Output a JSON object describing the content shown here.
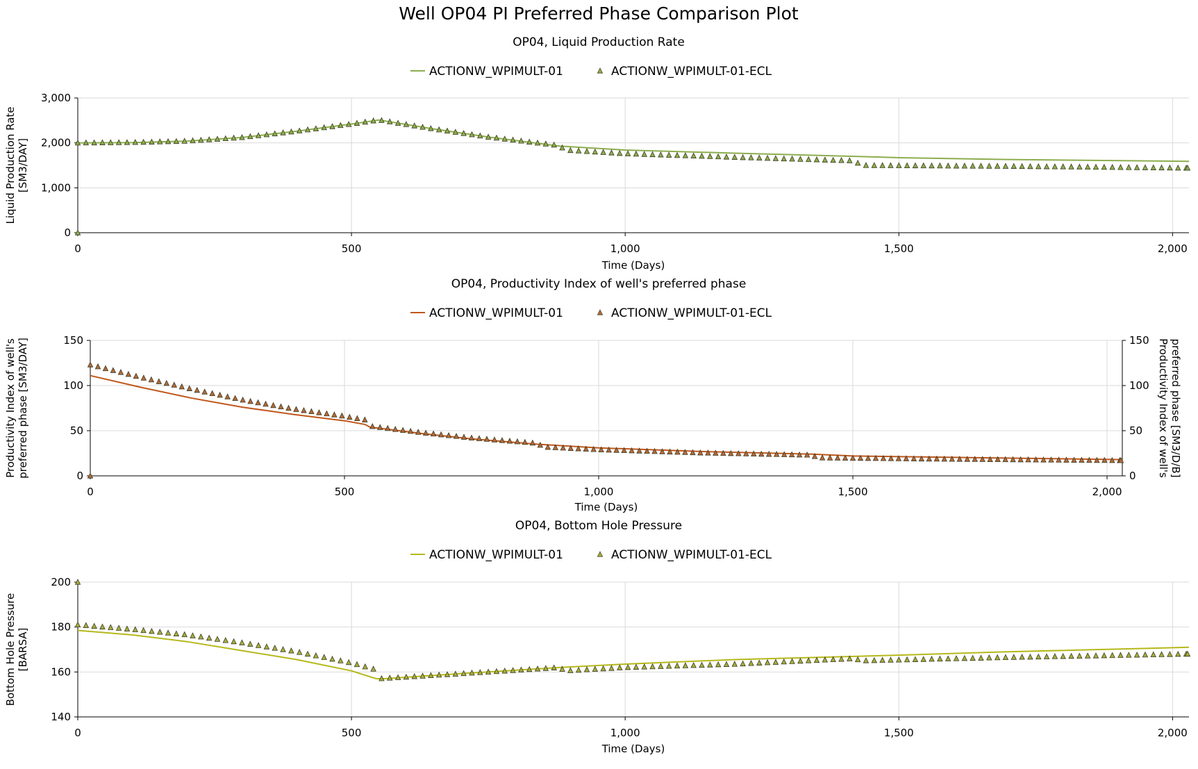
{
  "title": "Well OP04 PI Preferred Phase Comparison Plot",
  "chart_data": [
    {
      "type": "line",
      "title": "OP04, Liquid Production Rate",
      "xlabel": "Time (Days)",
      "ylabel": [
        "Liquid Production Rate",
        "[SM3/DAY]"
      ],
      "xlim": [
        0,
        2030
      ],
      "ylim": [
        0,
        3000
      ],
      "x_ticks": [
        0,
        500,
        1000,
        1500,
        2000
      ],
      "x_tick_labels": [
        "0",
        "500",
        "1,000",
        "1,500",
        "2,000"
      ],
      "y_ticks": [
        0,
        1000,
        2000,
        3000
      ],
      "y_tick_labels": [
        "0",
        "1,000",
        "2,000",
        "3,000"
      ],
      "grid": true,
      "legend_position": "top-center",
      "colors": {
        "line": "#8cad4e",
        "marker": "#8cad4e"
      },
      "series": [
        {
          "name": "ACTIONW_WPIMULT-01",
          "style": "line",
          "x": [
            0,
            100,
            200,
            300,
            400,
            500,
            550,
            650,
            750,
            880,
            1000,
            1200,
            1420,
            1500,
            1700,
            2030
          ],
          "y": [
            2000,
            2005,
            2040,
            2120,
            2260,
            2420,
            2510,
            2310,
            2130,
            1930,
            1840,
            1770,
            1700,
            1670,
            1630,
            1590
          ]
        },
        {
          "name": "ACTIONW_WPIMULT-01-ECL",
          "style": "marker",
          "marker": "triangle",
          "x": [
            0,
            0,
            100,
            200,
            300,
            400,
            500,
            550,
            650,
            750,
            880,
            890,
            1000,
            1200,
            1420,
            1430,
            1700,
            2030
          ],
          "y": [
            0,
            2000,
            2010,
            2040,
            2120,
            2260,
            2420,
            2510,
            2310,
            2130,
            1940,
            1840,
            1760,
            1680,
            1600,
            1500,
            1480,
            1440
          ]
        }
      ]
    },
    {
      "type": "line",
      "title": "OP04, Productivity Index of well's preferred phase",
      "xlabel": "Time (Days)",
      "ylabel": [
        "Productivity Index of well's",
        "preferred phase [SM3/DAY]"
      ],
      "y2label": [
        "Productivity Index of well's",
        "preferred phase [SM3/D/B]"
      ],
      "xlim": [
        0,
        2030
      ],
      "ylim": [
        0,
        150
      ],
      "x_ticks": [
        0,
        500,
        1000,
        1500,
        2000
      ],
      "x_tick_labels": [
        "0",
        "500",
        "1,000",
        "1,500",
        "2,000"
      ],
      "y_ticks": [
        0,
        50,
        100,
        150
      ],
      "y_tick_labels": [
        "0",
        "50",
        "100",
        "150"
      ],
      "grid": true,
      "legend_position": "top-center",
      "colors": {
        "line": "#c0561a",
        "marker": "#b36a3c"
      },
      "series": [
        {
          "name": "ACTIONW_WPIMULT-01",
          "style": "line",
          "x": [
            0,
            100,
            200,
            300,
            400,
            500,
            540,
            550,
            650,
            750,
            880,
            1000,
            1200,
            1420,
            1500,
            1700,
            2030
          ],
          "y": [
            111,
            98,
            86,
            76,
            68,
            61,
            57,
            54,
            47,
            41,
            35,
            31,
            27,
            24,
            22,
            20.5,
            18
          ]
        },
        {
          "name": "ACTIONW_WPIMULT-01-ECL",
          "style": "marker",
          "marker": "triangle",
          "x": [
            0,
            0,
            100,
            200,
            300,
            400,
            500,
            540,
            550,
            650,
            750,
            880,
            890,
            1000,
            1200,
            1420,
            1430,
            1700,
            2030
          ],
          "y": [
            0,
            123,
            109,
            96,
            84,
            74,
            66,
            62,
            55,
            48,
            42,
            36,
            32,
            29,
            25.5,
            23,
            20,
            18.5,
            17
          ]
        }
      ]
    },
    {
      "type": "line",
      "title": "OP04, Bottom Hole Pressure",
      "xlabel": "Time (Days)",
      "ylabel": [
        "Bottom Hole Pressure",
        "[BARSA]"
      ],
      "xlim": [
        0,
        2030
      ],
      "ylim": [
        140,
        200
      ],
      "x_ticks": [
        0,
        500,
        1000,
        1500,
        2000
      ],
      "x_tick_labels": [
        "0",
        "500",
        "1,000",
        "1,500",
        "2,000"
      ],
      "y_ticks": [
        140,
        160,
        180,
        200
      ],
      "y_tick_labels": [
        "140",
        "160",
        "180",
        "200"
      ],
      "grid": true,
      "legend_position": "top-center",
      "colors": {
        "line": "#b5b81a",
        "marker": "#a6ad3e"
      },
      "series": [
        {
          "name": "ACTIONW_WPIMULT-01",
          "style": "line",
          "x": [
            0,
            100,
            200,
            300,
            400,
            500,
            545,
            560,
            650,
            750,
            880,
            1000,
            1200,
            1500,
            1700,
            1900,
            2030
          ],
          "y": [
            178.5,
            176.5,
            173.5,
            169.5,
            165.5,
            160.5,
            157,
            157,
            158.5,
            160,
            162,
            163.5,
            165.5,
            167.5,
            169,
            170.2,
            171
          ]
        },
        {
          "name": "ACTIONW_WPIMULT-01-ECL",
          "style": "marker",
          "marker": "triangle",
          "x": [
            0,
            0,
            100,
            200,
            300,
            400,
            500,
            545,
            550,
            650,
            750,
            880,
            890,
            1000,
            1200,
            1420,
            1430,
            1700,
            2030
          ],
          "y": [
            200,
            181,
            179,
            176.5,
            173,
            169,
            164,
            161,
            157,
            158.5,
            160,
            162,
            160.5,
            162,
            163.5,
            166,
            165,
            166.5,
            168
          ]
        }
      ]
    }
  ]
}
